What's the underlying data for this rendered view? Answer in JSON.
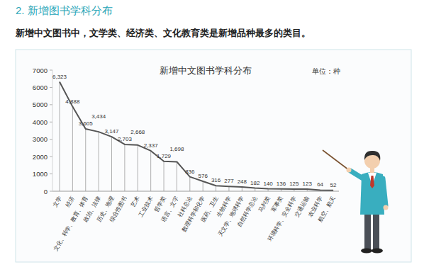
{
  "header": {
    "title": "2. 新增图书学科分布",
    "text": "新增中文图书中，文学类、经济类、文化教育类是新增品种最多的类目。"
  },
  "chart_data": {
    "type": "line",
    "title": "新增中文图书学科分布",
    "annotations": [
      "单位：种"
    ],
    "categories": [
      "文学",
      "经济",
      "文化、科学、教育、体育",
      "政治、法律",
      "历史、地理",
      "综合性图书",
      "艺术",
      "工业技术",
      "哲学类",
      "语言、文字",
      "社科总论",
      "数理科学和化学",
      "医药、卫生",
      "生物科学",
      "天文学、地球科学",
      "自然科学总论",
      "马列类",
      "军事类",
      "环境科学、安全科学",
      "交通运输",
      "农业科学",
      "航空、航天"
    ],
    "values": [
      6323,
      4888,
      3605,
      3434,
      3147,
      2703,
      2668,
      2337,
      1729,
      1698,
      836,
      576,
      316,
      277,
      248,
      182,
      140,
      136,
      125,
      123,
      64,
      52
    ],
    "value_labels": [
      "6,323",
      "4,888",
      "3,605",
      "3,434",
      "3,147",
      "2,703",
      "2,668",
      "2,337",
      "1,729",
      "1,698",
      "836",
      "576",
      "316",
      "277",
      "248",
      "182",
      "140",
      "136",
      "125",
      "123",
      "64",
      "52"
    ],
    "color": "#555555",
    "ylim": [
      0,
      7000
    ],
    "yticks": [
      0,
      1000,
      2000,
      3000,
      4000,
      5000,
      6000,
      7000
    ],
    "grid": false,
    "data_labels": true
  }
}
